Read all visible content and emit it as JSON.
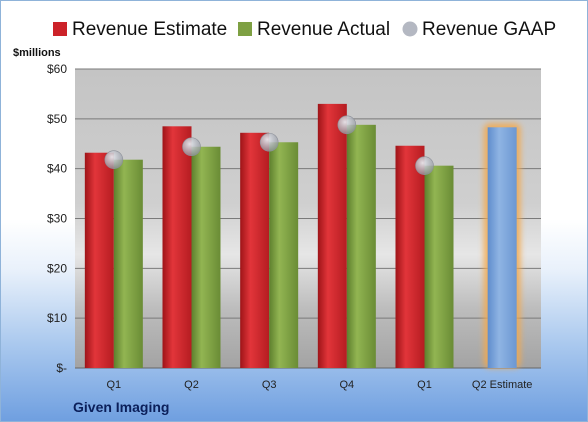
{
  "company": "Given Imaging",
  "chart_data": {
    "type": "bar",
    "ylabel": "$millions",
    "ylim": [
      0,
      60
    ],
    "yticks": [
      0,
      10,
      20,
      30,
      40,
      50,
      60
    ],
    "ytick_labels": [
      "$-",
      "$10",
      "$20",
      "$30",
      "$40",
      "$50",
      "$60"
    ],
    "categories": [
      "Q1",
      "Q2",
      "Q3",
      "Q4",
      "Q1",
      "Q2 Estimate"
    ],
    "legend_position": "top",
    "grid": true,
    "series": [
      {
        "name": "Revenue Estimate",
        "color": "#cc2229",
        "values": [
          43.2,
          48.5,
          47.2,
          53.0,
          44.6,
          null
        ]
      },
      {
        "name": "Revenue Actual",
        "color": "#7ea043",
        "values": [
          41.8,
          44.4,
          45.3,
          48.8,
          40.6,
          null
        ]
      },
      {
        "name": "Revenue GAAP",
        "color": "#b4b8c2",
        "values": [
          41.8,
          44.4,
          45.3,
          48.8,
          40.6,
          null
        ]
      }
    ],
    "estimate": {
      "category": "Q2 Estimate",
      "value": 48.3,
      "color": "#7fa6d8",
      "highlight_color": "#f3a94e"
    }
  }
}
